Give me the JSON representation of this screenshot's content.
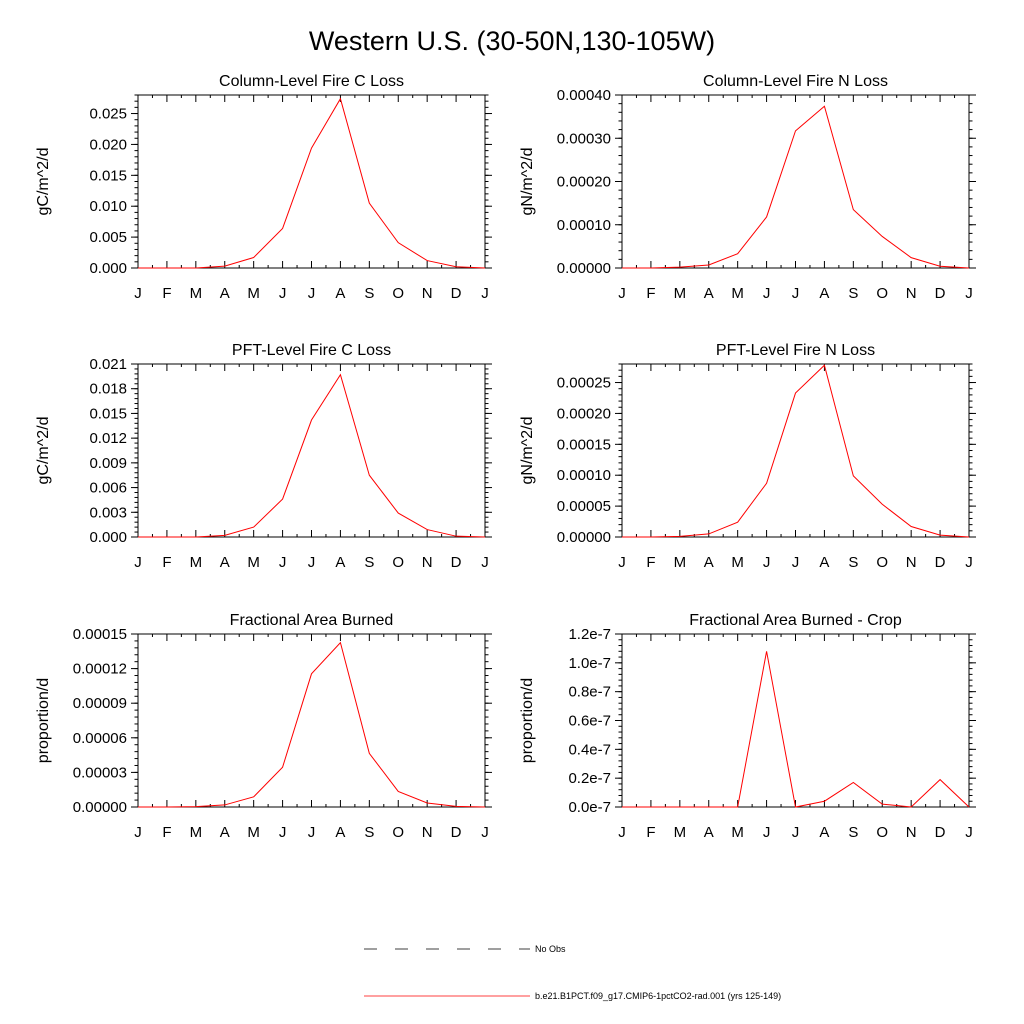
{
  "figure": {
    "title": "Western U.S. (30-50N,130-105W)"
  },
  "legend": {
    "items": [
      {
        "label": "No Obs",
        "color": "#000000",
        "style": "dashed"
      },
      {
        "label": "b.e21.B1PCT.f09_g17.CMIP6-1pctCO2-rad.001 (yrs 125-149)",
        "color": "#ff0000",
        "style": "solid"
      }
    ]
  },
  "chart_data": [
    {
      "type": "line",
      "title": "Column-Level Fire C Loss",
      "ylabel": "gC/m^2/d",
      "xlabel": "",
      "categories": [
        "J",
        "F",
        "M",
        "A",
        "M",
        "J",
        "J",
        "A",
        "S",
        "O",
        "N",
        "D",
        "J"
      ],
      "ylim": [
        0,
        0.028
      ],
      "yticks": [
        0.0,
        0.005,
        0.01,
        0.015,
        0.02,
        0.025
      ],
      "ytick_labels": [
        "0.000",
        "0.005",
        "0.010",
        "0.015",
        "0.020",
        "0.025"
      ],
      "series": [
        {
          "color": "#ff0000",
          "values": [
            0.0,
            0.0,
            0.0,
            0.0003,
            0.0017,
            0.0064,
            0.0194,
            0.0274,
            0.0105,
            0.0041,
            0.0012,
            0.0002,
            0.0
          ]
        }
      ]
    },
    {
      "type": "line",
      "title": "Column-Level Fire N Loss",
      "ylabel": "gN/m^2/d",
      "xlabel": "",
      "categories": [
        "J",
        "F",
        "M",
        "A",
        "M",
        "J",
        "J",
        "A",
        "S",
        "O",
        "N",
        "D",
        "J"
      ],
      "ylim": [
        0,
        0.0004
      ],
      "yticks": [
        0.0,
        0.0001,
        0.0002,
        0.0003,
        0.0004
      ],
      "ytick_labels": [
        "0.00000",
        "0.00010",
        "0.00020",
        "0.00030",
        "0.00040"
      ],
      "series": [
        {
          "color": "#ff0000",
          "values": [
            0.0,
            0.0,
            2e-06,
            7e-06,
            3.3e-05,
            0.000118,
            0.000317,
            0.000374,
            0.000135,
            7.3e-05,
            2.4e-05,
            4e-06,
            0.0
          ]
        }
      ]
    },
    {
      "type": "line",
      "title": "PFT-Level Fire C Loss",
      "ylabel": "gC/m^2/d",
      "xlabel": "",
      "categories": [
        "J",
        "F",
        "M",
        "A",
        "M",
        "J",
        "J",
        "A",
        "S",
        "O",
        "N",
        "D",
        "J"
      ],
      "ylim": [
        0,
        0.021
      ],
      "yticks": [
        0.0,
        0.003,
        0.006,
        0.009,
        0.012,
        0.015,
        0.018,
        0.021
      ],
      "ytick_labels": [
        "0.000",
        "0.003",
        "0.006",
        "0.009",
        "0.012",
        "0.015",
        "0.018",
        "0.021"
      ],
      "series": [
        {
          "color": "#ff0000",
          "values": [
            0.0,
            0.0,
            0.0,
            0.0002,
            0.0012,
            0.0046,
            0.0142,
            0.0197,
            0.0075,
            0.0029,
            0.0009,
            0.0001,
            0.0
          ]
        }
      ]
    },
    {
      "type": "line",
      "title": "PFT-Level Fire N Loss",
      "ylabel": "gN/m^2/d",
      "xlabel": "",
      "categories": [
        "J",
        "F",
        "M",
        "A",
        "M",
        "J",
        "J",
        "A",
        "S",
        "O",
        "N",
        "D",
        "J"
      ],
      "ylim": [
        0,
        0.00028
      ],
      "yticks": [
        0.0,
        5e-05,
        0.0001,
        0.00015,
        0.0002,
        0.00025
      ],
      "ytick_labels": [
        "0.00000",
        "0.00005",
        "0.00010",
        "0.00015",
        "0.00020",
        "0.00025"
      ],
      "series": [
        {
          "color": "#ff0000",
          "values": [
            0.0,
            0.0,
            1e-06,
            5e-06,
            2.4e-05,
            8.7e-05,
            0.000233,
            0.000278,
            9.9e-05,
            5.3e-05,
            1.7e-05,
            3e-06,
            0.0
          ]
        }
      ]
    },
    {
      "type": "line",
      "title": "Fractional Area Burned",
      "ylabel": "proportion/d",
      "xlabel": "",
      "categories": [
        "J",
        "F",
        "M",
        "A",
        "M",
        "J",
        "J",
        "A",
        "S",
        "O",
        "N",
        "D",
        "J"
      ],
      "ylim": [
        0,
        0.00015
      ],
      "yticks": [
        0.0,
        3e-05,
        6e-05,
        9e-05,
        0.00012,
        0.00015
      ],
      "ytick_labels": [
        "0.00000",
        "0.00003",
        "0.00006",
        "0.00009",
        "0.00012",
        "0.00015"
      ],
      "series": [
        {
          "color": "#ff0000",
          "values": [
            0.0,
            0.0,
            3e-07,
            1.8e-06,
            8.8e-06,
            3.45e-05,
            0.0001155,
            0.0001425,
            4.65e-05,
            1.35e-05,
            3.5e-06,
            5e-07,
            0.0
          ]
        }
      ]
    },
    {
      "type": "line",
      "title": "Fractional Area Burned - Crop",
      "ylabel": "proportion/d",
      "xlabel": "",
      "categories": [
        "J",
        "F",
        "M",
        "A",
        "M",
        "J",
        "J",
        "A",
        "S",
        "O",
        "N",
        "D",
        "J"
      ],
      "ylim": [
        0,
        1.2e-07
      ],
      "yticks": [
        0.0,
        2e-08,
        4e-08,
        6e-08,
        8e-08,
        1e-07,
        1.2e-07
      ],
      "ytick_labels": [
        "0.0e-7",
        "0.2e-7",
        "0.4e-7",
        "0.6e-7",
        "0.8e-7",
        "1.0e-7",
        "1.2e-7"
      ],
      "series": [
        {
          "color": "#ff0000",
          "values": [
            0.0,
            0.0,
            0.0,
            0.0,
            0.0,
            1.08e-07,
            0.0,
            4e-09,
            1.7e-08,
            2e-09,
            0.0,
            1.9e-08,
            0.0
          ]
        }
      ]
    }
  ]
}
